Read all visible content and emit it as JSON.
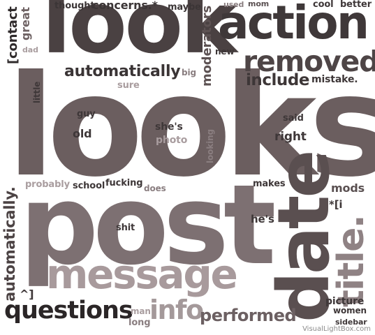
{
  "words": [
    {
      "text": "looks",
      "color": "#6b5e5f"
    },
    {
      "text": "look",
      "color": "#4a4142"
    },
    {
      "text": "post",
      "color": "#7d7072"
    },
    {
      "text": "action",
      "color": "#3f3839"
    },
    {
      "text": "date",
      "color": "#5a4f50"
    },
    {
      "text": "message",
      "color": "#a89a9c"
    },
    {
      "text": "removed",
      "color": "#4e4546"
    },
    {
      "text": "title.",
      "color": "#8f8284"
    },
    {
      "text": "questions",
      "color": "#2b2627"
    },
    {
      "text": "info",
      "color": "#a4999a"
    },
    {
      "text": "automatically",
      "color": "#3a3435"
    },
    {
      "text": "automatically.",
      "color": "#4c4344"
    },
    {
      "text": "performed",
      "color": "#6c6062"
    },
    {
      "text": "include",
      "color": "#3d3637"
    },
    {
      "text": "moderators",
      "color": "#5d5253"
    },
    {
      "text": "[contact",
      "color": "#2f2a2b"
    },
    {
      "text": "great",
      "color": "#6f6364"
    },
    {
      "text": "thought",
      "color": "#3b3536"
    },
    {
      "text": "concerns.*",
      "color": "#3b3536"
    },
    {
      "text": "maybe",
      "color": "#3b3536"
    },
    {
      "text": "used",
      "color": "#8a7e80"
    },
    {
      "text": "mom",
      "color": "#5a5051"
    },
    {
      "text": "cool",
      "color": "#3e3738"
    },
    {
      "text": "better",
      "color": "#3e3738"
    },
    {
      "text": "dad",
      "color": "#a99d9f"
    },
    {
      "text": "new",
      "color": "#3e3738"
    },
    {
      "text": "big",
      "color": "#8a7e80"
    },
    {
      "text": "sure",
      "color": "#a99d9f"
    },
    {
      "text": "mistake.",
      "color": "#3e3738"
    },
    {
      "text": "little",
      "color": "#3e3738"
    },
    {
      "text": "guy",
      "color": "#3e3738"
    },
    {
      "text": "old",
      "color": "#3e3738"
    },
    {
      "text": "she's",
      "color": "#3e3738"
    },
    {
      "text": "photo",
      "color": "#a99d9f"
    },
    {
      "text": "looking",
      "color": "#8a7e80"
    },
    {
      "text": "said",
      "color": "#3e3738"
    },
    {
      "text": "right",
      "color": "#3e3738"
    },
    {
      "text": "probably",
      "color": "#a99d9f"
    },
    {
      "text": "school",
      "color": "#3e3738"
    },
    {
      "text": "fucking",
      "color": "#3e3738"
    },
    {
      "text": "does",
      "color": "#8a7e80"
    },
    {
      "text": "makes",
      "color": "#3e3738"
    },
    {
      "text": "mods",
      "color": "#5a5051"
    },
    {
      "text": "*[i",
      "color": "#3e3738"
    },
    {
      "text": "shit",
      "color": "#3e3738"
    },
    {
      "text": "he's",
      "color": "#3e3738"
    },
    {
      "text": "^]",
      "color": "#3e3738"
    },
    {
      "text": "man",
      "color": "#a99d9f"
    },
    {
      "text": "long",
      "color": "#8a7e80"
    },
    {
      "text": "picture",
      "color": "#3e3738"
    },
    {
      "text": "women",
      "color": "#3e3738"
    },
    {
      "text": "sidebar",
      "color": "#3e3738"
    }
  ],
  "watermark": "VisualLightBox.com"
}
